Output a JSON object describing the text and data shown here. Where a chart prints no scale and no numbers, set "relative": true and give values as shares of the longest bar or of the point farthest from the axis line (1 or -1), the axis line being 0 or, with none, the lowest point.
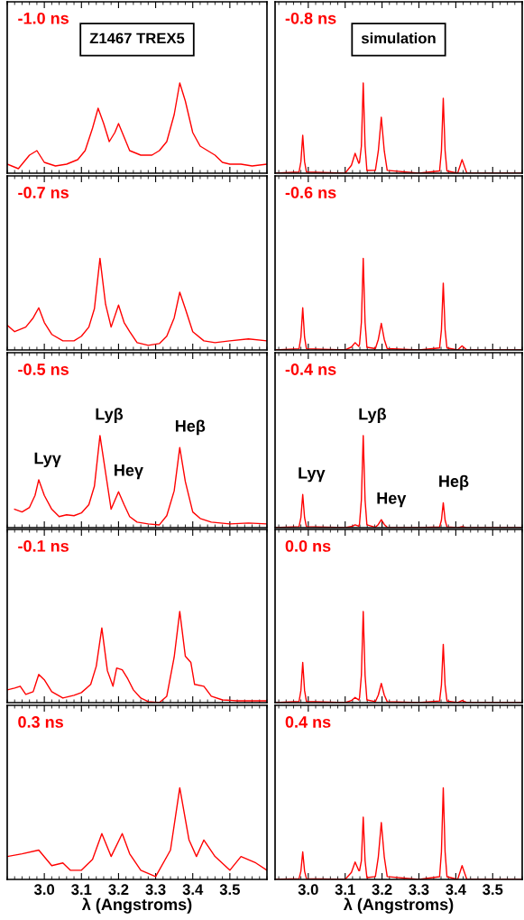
{
  "chart_data": [
    {
      "type": "line",
      "title": "-1.0 ns",
      "relative": true,
      "xlim": [
        2.9,
        3.6
      ],
      "xticks": [
        3.0,
        3.1,
        3.2,
        3.3,
        3.4,
        3.5
      ],
      "tick_labels": false,
      "annotations": [
        "Z1467 TREX5"
      ],
      "series": [
        {
          "color": "#ff0000",
          "x": [
            2.9,
            2.93,
            2.96,
            2.98,
            3.0,
            3.03,
            3.06,
            3.09,
            3.11,
            3.13,
            3.145,
            3.16,
            3.175,
            3.19,
            3.2,
            3.215,
            3.23,
            3.26,
            3.29,
            3.31,
            3.33,
            3.35,
            3.365,
            3.38,
            3.4,
            3.42,
            3.44,
            3.46,
            3.48,
            3.5,
            3.53,
            3.56,
            3.6
          ],
          "values": [
            0.1,
            0.05,
            0.2,
            0.25,
            0.12,
            0.08,
            0.1,
            0.15,
            0.25,
            0.5,
            0.72,
            0.55,
            0.35,
            0.45,
            0.55,
            0.4,
            0.25,
            0.2,
            0.2,
            0.25,
            0.35,
            0.65,
            1.0,
            0.8,
            0.45,
            0.3,
            0.25,
            0.2,
            0.12,
            0.1,
            0.1,
            0.08,
            0.1
          ]
        }
      ]
    },
    {
      "type": "line",
      "title": "-0.8 ns",
      "relative": true,
      "xlim": [
        2.91,
        3.58
      ],
      "xticks": [
        3.0,
        3.1,
        3.2,
        3.3,
        3.4,
        3.5
      ],
      "tick_labels": false,
      "annotations": [
        "simulation"
      ],
      "series": [
        {
          "color": "#ff0000",
          "x": [
            2.91,
            2.975,
            2.98,
            2.985,
            2.99,
            2.995,
            3.1,
            3.117,
            3.127,
            3.137,
            3.139,
            3.144,
            3.149,
            3.154,
            3.159,
            3.182,
            3.19,
            3.198,
            3.206,
            3.214,
            3.3,
            3.356,
            3.361,
            3.366,
            3.371,
            3.376,
            3.405,
            3.417,
            3.43,
            3.58
          ],
          "values": [
            0,
            0.013,
            0.126,
            0.42,
            0.126,
            0.013,
            0,
            0.088,
            0.22,
            0.11,
            0.12,
            0.3,
            1.0,
            0.3,
            0.03,
            0.031,
            0.248,
            0.62,
            0.248,
            0.031,
            0,
            0.025,
            0.249,
            0.83,
            0.249,
            0.025,
            0,
            0.15,
            0,
            0
          ]
        }
      ]
    },
    {
      "type": "line",
      "title": "-0.7 ns",
      "relative": true,
      "xlim": [
        2.9,
        3.6
      ],
      "xticks": [
        3.0,
        3.1,
        3.2,
        3.3,
        3.4,
        3.5
      ],
      "tick_labels": false,
      "series": [
        {
          "color": "#ff0000",
          "x": [
            2.9,
            2.92,
            2.95,
            2.97,
            2.985,
            3.0,
            3.02,
            3.05,
            3.08,
            3.1,
            3.12,
            3.135,
            3.15,
            3.165,
            3.18,
            3.2,
            3.215,
            3.23,
            3.25,
            3.28,
            3.31,
            3.33,
            3.35,
            3.365,
            3.38,
            3.4,
            3.43,
            3.46,
            3.5,
            3.55,
            3.6
          ],
          "values": [
            0.27,
            0.2,
            0.25,
            0.35,
            0.46,
            0.3,
            0.17,
            0.1,
            0.1,
            0.15,
            0.25,
            0.45,
            1.0,
            0.5,
            0.25,
            0.49,
            0.3,
            0.2,
            0.08,
            0.05,
            0.07,
            0.15,
            0.35,
            0.63,
            0.45,
            0.2,
            0.1,
            0.08,
            0.1,
            0.12,
            0.1
          ]
        }
      ]
    },
    {
      "type": "line",
      "title": "-0.6 ns",
      "relative": true,
      "xlim": [
        2.91,
        3.58
      ],
      "xticks": [
        3.0,
        3.1,
        3.2,
        3.3,
        3.4,
        3.5
      ],
      "tick_labels": false,
      "series": [
        {
          "color": "#ff0000",
          "x": [
            2.91,
            2.975,
            2.98,
            2.985,
            2.99,
            2.995,
            3.1,
            3.117,
            3.127,
            3.137,
            3.139,
            3.144,
            3.149,
            3.154,
            3.159,
            3.182,
            3.19,
            3.198,
            3.206,
            3.214,
            3.3,
            3.356,
            3.361,
            3.366,
            3.371,
            3.376,
            3.405,
            3.417,
            3.43,
            3.58
          ],
          "values": [
            0,
            0.014,
            0.138,
            0.46,
            0.138,
            0.014,
            0,
            0.032,
            0.08,
            0.04,
            0.062,
            0.3,
            1.0,
            0.3,
            0.03,
            0.015,
            0.116,
            0.29,
            0.116,
            0.015,
            0,
            0.022,
            0.219,
            0.73,
            0.219,
            0.022,
            0,
            0.045,
            0,
            0
          ]
        }
      ]
    },
    {
      "type": "line",
      "title": "-0.5 ns",
      "relative": true,
      "xlim": [
        2.9,
        3.6
      ],
      "xticks": [
        3.0,
        3.1,
        3.2,
        3.3,
        3.4,
        3.5
      ],
      "tick_labels": false,
      "annotations": [
        {
          "text": "Lyγ",
          "x": 2.985,
          "y": 0.52
        },
        {
          "text": "Lyβ",
          "x": 3.15,
          "y": 1.0
        },
        {
          "text": "Heγ",
          "x": 3.2,
          "y": 0.39
        },
        {
          "text": "Heβ",
          "x": 3.365,
          "y": 0.87
        }
      ],
      "series": [
        {
          "color": "#ff0000",
          "x": [
            2.92,
            2.94,
            2.96,
            2.975,
            2.985,
            3.0,
            3.02,
            3.04,
            3.06,
            3.08,
            3.1,
            3.12,
            3.135,
            3.15,
            3.165,
            3.18,
            3.2,
            3.215,
            3.23,
            3.25,
            3.28,
            3.31,
            3.33,
            3.35,
            3.365,
            3.38,
            3.4,
            3.42,
            3.45,
            3.5,
            3.55,
            3.6
          ],
          "values": [
            0.2,
            0.17,
            0.22,
            0.35,
            0.52,
            0.35,
            0.2,
            0.12,
            0.14,
            0.13,
            0.16,
            0.25,
            0.45,
            1.0,
            0.6,
            0.2,
            0.39,
            0.25,
            0.12,
            0.06,
            0.04,
            0.03,
            0.13,
            0.4,
            0.87,
            0.5,
            0.17,
            0.1,
            0.06,
            0.04,
            0.05,
            0.04
          ]
        }
      ]
    },
    {
      "type": "line",
      "title": "-0.4 ns",
      "relative": true,
      "xlim": [
        2.91,
        3.58
      ],
      "xticks": [
        3.0,
        3.1,
        3.2,
        3.3,
        3.4,
        3.5
      ],
      "tick_labels": false,
      "annotations": [
        {
          "text": "Lyγ",
          "x": 2.985,
          "y": 0.36
        },
        {
          "text": "Lyβ",
          "x": 3.149,
          "y": 1.0
        },
        {
          "text": "Heγ",
          "x": 3.198,
          "y": 0.087
        },
        {
          "text": "Heβ",
          "x": 3.366,
          "y": 0.27
        }
      ],
      "series": [
        {
          "color": "#ff0000",
          "x": [
            2.91,
            2.975,
            2.98,
            2.985,
            2.99,
            2.995,
            3.1,
            3.117,
            3.127,
            3.137,
            3.139,
            3.144,
            3.149,
            3.154,
            3.159,
            3.182,
            3.19,
            3.198,
            3.206,
            3.214,
            3.3,
            3.356,
            3.361,
            3.366,
            3.371,
            3.376,
            3.405,
            3.417,
            3.43,
            3.58
          ],
          "values": [
            0,
            0.011,
            0.108,
            0.36,
            0.108,
            0.011,
            0,
            0.012,
            0.03,
            0.015,
            0.042,
            0.3,
            1.0,
            0.3,
            0.03,
            0.004,
            0.035,
            0.087,
            0.035,
            0.004,
            0,
            0.008,
            0.081,
            0.27,
            0.081,
            0.008,
            0,
            0.01,
            0,
            0
          ]
        }
      ]
    },
    {
      "type": "line",
      "title": "-0.1 ns",
      "relative": true,
      "xlim": [
        2.9,
        3.6
      ],
      "xticks": [
        3.0,
        3.1,
        3.2,
        3.3,
        3.4,
        3.5
      ],
      "tick_labels": false,
      "series": [
        {
          "color": "#ff0000",
          "x": [
            2.9,
            2.92,
            2.935,
            2.95,
            2.97,
            2.985,
            3.0,
            3.02,
            3.05,
            3.08,
            3.1,
            3.125,
            3.14,
            3.155,
            3.17,
            3.185,
            3.195,
            3.21,
            3.225,
            3.24,
            3.26,
            3.28,
            3.31,
            3.33,
            3.35,
            3.365,
            3.38,
            3.395,
            3.405,
            3.43,
            3.45,
            3.48,
            3.52,
            3.56,
            3.6
          ],
          "values": [
            0.14,
            0.16,
            0.18,
            0.09,
            0.12,
            0.31,
            0.25,
            0.12,
            0.05,
            0.08,
            0.11,
            0.2,
            0.4,
            0.82,
            0.35,
            0.18,
            0.38,
            0.36,
            0.26,
            0.14,
            0.05,
            0.01,
            0.0,
            0.07,
            0.5,
            1.0,
            0.51,
            0.44,
            0.2,
            0.18,
            0.07,
            0.03,
            0.02,
            0.02,
            0.02
          ]
        }
      ]
    },
    {
      "type": "line",
      "title": "0.0 ns",
      "relative": true,
      "xlim": [
        2.91,
        3.58
      ],
      "xticks": [
        3.0,
        3.1,
        3.2,
        3.3,
        3.4,
        3.5
      ],
      "tick_labels": false,
      "series": [
        {
          "color": "#ff0000",
          "x": [
            2.91,
            2.975,
            2.98,
            2.985,
            2.99,
            2.995,
            3.1,
            3.117,
            3.127,
            3.137,
            3.139,
            3.144,
            3.149,
            3.154,
            3.159,
            3.182,
            3.19,
            3.198,
            3.206,
            3.214,
            3.3,
            3.356,
            3.361,
            3.366,
            3.371,
            3.376,
            3.405,
            3.417,
            3.43,
            3.58
          ],
          "values": [
            0,
            0.013,
            0.132,
            0.44,
            0.132,
            0.013,
            0,
            0.023,
            0.057,
            0.029,
            0.053,
            0.3,
            1.0,
            0.3,
            0.03,
            0.011,
            0.084,
            0.21,
            0.084,
            0.011,
            0,
            0.019,
            0.192,
            0.64,
            0.192,
            0.019,
            0,
            0.023,
            0,
            0
          ]
        }
      ]
    },
    {
      "type": "line",
      "title": "0.3 ns",
      "relative": true,
      "xlabel": "λ (Angstroms)",
      "xlim": [
        2.9,
        3.6
      ],
      "xticks": [
        {
          "value": 3.0,
          "label": "3.0"
        },
        3.1,
        3.2,
        3.3,
        3.4,
        3.5
      ],
      "tick_labels": "x",
      "series": [
        {
          "color": "#ff0000",
          "x": [
            2.9,
            2.94,
            2.985,
            3.02,
            3.05,
            3.07,
            3.1,
            3.13,
            3.155,
            3.18,
            3.21,
            3.23,
            3.26,
            3.3,
            3.34,
            3.365,
            3.39,
            3.41,
            3.43,
            3.46,
            3.5,
            3.53,
            3.57,
            3.6
          ],
          "values": [
            0.25,
            0.28,
            0.32,
            0.15,
            0.18,
            0.1,
            0.1,
            0.22,
            0.5,
            0.25,
            0.5,
            0.28,
            0.1,
            0.03,
            0.32,
            1.0,
            0.43,
            0.25,
            0.43,
            0.25,
            0.1,
            0.25,
            0.18,
            0.1
          ]
        }
      ]
    },
    {
      "type": "line",
      "title": "0.4 ns",
      "relative": true,
      "xlabel": "λ (Angstroms)",
      "xlim": [
        2.91,
        3.58
      ],
      "xticks": [
        {
          "value": 3.0,
          "label": "3.0"
        },
        3.1,
        3.2,
        3.3,
        3.4,
        3.5
      ],
      "tick_labels": "x",
      "series": [
        {
          "color": "#ff0000",
          "x": [
            2.91,
            2.975,
            2.98,
            2.985,
            2.99,
            2.995,
            3.1,
            3.117,
            3.127,
            3.137,
            3.139,
            3.144,
            3.149,
            3.154,
            3.159,
            3.182,
            3.19,
            3.198,
            3.206,
            3.214,
            3.3,
            3.356,
            3.361,
            3.366,
            3.371,
            3.376,
            3.405,
            3.417,
            3.43,
            3.58
          ],
          "values": [
            0,
            0.009,
            0.09,
            0.3,
            0.09,
            0.009,
            0,
            0.076,
            0.19,
            0.095,
            0.096,
            0.204,
            0.68,
            0.204,
            0.02,
            0.031,
            0.248,
            0.62,
            0.248,
            0.031,
            0,
            0.03,
            0.3,
            1.0,
            0.3,
            0.03,
            0,
            0.15,
            0,
            0
          ]
        }
      ]
    }
  ]
}
